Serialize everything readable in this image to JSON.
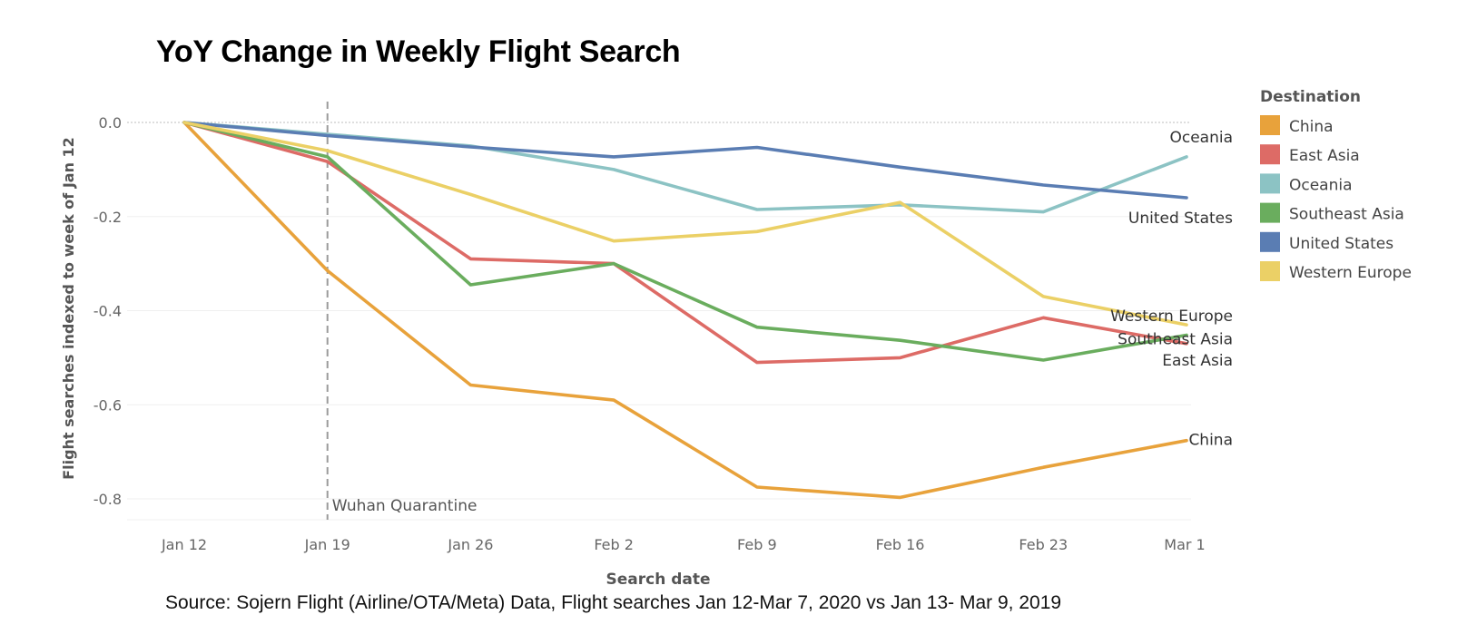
{
  "title": "YoY Change in Weekly Flight Search",
  "source": "Source: Sojern Flight (Airline/OTA/Meta) Data, Flight searches Jan 12-Mar 7, 2020 vs Jan 13- Mar 9, 2019",
  "chart_data": {
    "type": "line",
    "title": "YoY Change in Weekly Flight Search",
    "xlabel": "Search date",
    "ylabel": "Flight searches indexed to week of Jan 12",
    "categories": [
      "Jan 12",
      "Jan 19",
      "Jan 26",
      "Feb 2",
      "Feb 9",
      "Feb 16",
      "Feb 23",
      "Mar 1"
    ],
    "yticks": [
      "0.0",
      "-0.2",
      "-0.4",
      "-0.6",
      "-0.8"
    ],
    "ylim": [
      -0.84,
      0.02
    ],
    "grid": true,
    "legend_title": "Destination",
    "legend_position": "right",
    "series": [
      {
        "name": "China",
        "color": "#E8A23B",
        "end_label": "China",
        "values": [
          0.0,
          -0.315,
          -0.558,
          -0.59,
          -0.775,
          -0.797,
          -0.733,
          -0.676
        ]
      },
      {
        "name": "East Asia",
        "color": "#DD6B66",
        "end_label": "East Asia",
        "values": [
          0.0,
          -0.083,
          -0.29,
          -0.3,
          -0.51,
          -0.5,
          -0.415,
          -0.47
        ]
      },
      {
        "name": "Oceania",
        "color": "#8CC3C4",
        "end_label": "Oceania",
        "values": [
          0.0,
          -0.025,
          -0.05,
          -0.1,
          -0.185,
          -0.175,
          -0.19,
          -0.073
        ]
      },
      {
        "name": "Southeast Asia",
        "color": "#6AAD5E",
        "end_label": "Southeast Asia",
        "values": [
          0.0,
          -0.073,
          -0.345,
          -0.3,
          -0.435,
          -0.463,
          -0.505,
          -0.452
        ]
      },
      {
        "name": "United States",
        "color": "#5A7DB3",
        "end_label": "United States",
        "values": [
          0.0,
          -0.028,
          -0.052,
          -0.073,
          -0.053,
          -0.095,
          -0.133,
          -0.16
        ]
      },
      {
        "name": "Western Europe",
        "color": "#EBD066",
        "end_label": "Western Europe",
        "values": [
          0.0,
          -0.06,
          -0.153,
          -0.252,
          -0.232,
          -0.17,
          -0.37,
          -0.43
        ]
      }
    ],
    "annotations": [
      {
        "text": "Wuhan Quarantine",
        "x": "Jan 19"
      }
    ]
  }
}
